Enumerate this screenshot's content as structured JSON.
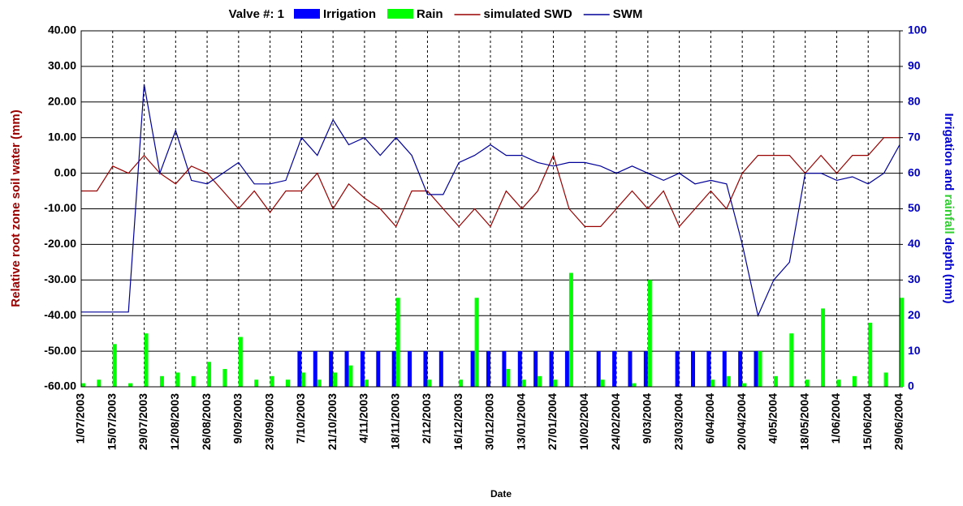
{
  "chart_data": {
    "type": "bar-line",
    "title": "Valve #: 1",
    "xlabel": "Date",
    "ylabel": "Relative root zone soil water  (mm)",
    "y2label": [
      "Irrigation and ",
      "rainfall",
      " depth (mm)"
    ],
    "y2label_colors": [
      "#0000cc",
      "#33cc33",
      "#0000cc"
    ],
    "ylabel_color": "#990000",
    "x": [
      "1/07/2003",
      "8/07/2003",
      "15/07/2003",
      "22/07/2003",
      "29/07/2003",
      "5/08/2003",
      "12/08/2003",
      "19/08/2003",
      "26/08/2003",
      "2/09/2003",
      "9/09/2003",
      "16/09/2003",
      "23/09/2003",
      "30/09/2003",
      "7/10/2003",
      "14/10/2003",
      "21/10/2003",
      "28/10/2003",
      "4/11/2003",
      "11/11/2003",
      "18/11/2003",
      "25/11/2003",
      "2/12/2003",
      "9/12/2003",
      "16/12/2003",
      "23/12/2003",
      "30/12/2003",
      "6/01/2004",
      "13/01/2004",
      "20/01/2004",
      "27/01/2004",
      "3/02/2004",
      "10/02/2004",
      "17/02/2004",
      "24/02/2004",
      "2/03/2004",
      "9/03/2004",
      "16/03/2004",
      "23/03/2004",
      "30/03/2004",
      "6/04/2004",
      "13/04/2004",
      "20/04/2004",
      "27/04/2004",
      "4/05/2004",
      "11/05/2004",
      "18/05/2004",
      "25/05/2004",
      "1/06/2004",
      "8/06/2004",
      "15/06/2004",
      "22/06/2004",
      "29/06/2004"
    ],
    "xlim": [
      "1/07/2003",
      "29/06/2004"
    ],
    "xticks": [
      "1/07/2003",
      "15/07/2003",
      "29/07/2003",
      "12/08/2003",
      "26/08/2003",
      "9/09/2003",
      "23/09/2003",
      "7/10/2003",
      "21/10/2003",
      "4/11/2003",
      "18/11/2003",
      "2/12/2003",
      "16/12/2003",
      "30/12/2003",
      "13/01/2004",
      "27/01/2004",
      "10/02/2004",
      "24/02/2004",
      "9/03/2004",
      "23/03/2004",
      "6/04/2004",
      "20/04/2004",
      "4/05/2004",
      "18/05/2004",
      "1/06/2004",
      "15/06/2004",
      "29/06/2004"
    ],
    "ylim": [
      -60,
      40
    ],
    "yticks": [
      {
        "value": -60,
        "label": "-60.00"
      },
      {
        "value": -50,
        "label": "-50.00"
      },
      {
        "value": -40,
        "label": "-40.00"
      },
      {
        "value": -30,
        "label": "-30.00"
      },
      {
        "value": -20,
        "label": "-20.00"
      },
      {
        "value": -10,
        "label": "-10.00"
      },
      {
        "value": 0,
        "label": "0.00"
      },
      {
        "value": 10,
        "label": "10.00"
      },
      {
        "value": 20,
        "label": "20.00"
      },
      {
        "value": 30,
        "label": "30.00"
      },
      {
        "value": 40,
        "label": "40.00"
      }
    ],
    "y2lim": [
      0,
      100
    ],
    "y2ticks": [
      0,
      10,
      20,
      30,
      40,
      50,
      60,
      70,
      80,
      90,
      100
    ],
    "grid": true,
    "series": [
      {
        "name": "Irrigation",
        "kind": "bar",
        "axis": "y2",
        "color": "#0000ff",
        "values": [
          0,
          0,
          0,
          0,
          0,
          0,
          0,
          0,
          0,
          0,
          0,
          0,
          0,
          0,
          10,
          10,
          10,
          10,
          10,
          10,
          10,
          10,
          10,
          10,
          0,
          10,
          10,
          10,
          10,
          10,
          10,
          10,
          0,
          10,
          10,
          10,
          10,
          0,
          10,
          10,
          10,
          10,
          10,
          10,
          0,
          0,
          0,
          0,
          0,
          0,
          0,
          0,
          0
        ]
      },
      {
        "name": "Rain",
        "kind": "bar",
        "axis": "y2",
        "color": "#00ff00",
        "values": [
          1,
          2,
          12,
          1,
          15,
          3,
          4,
          3,
          7,
          5,
          14,
          2,
          3,
          2,
          4,
          2,
          4,
          6,
          2,
          0,
          25,
          0,
          2,
          0,
          2,
          25,
          0,
          5,
          2,
          3,
          2,
          32,
          0,
          2,
          0,
          1,
          30,
          0,
          0,
          0,
          2,
          3,
          1,
          10,
          3,
          15,
          2,
          22,
          2,
          3,
          18,
          4,
          25
        ]
      },
      {
        "name": "simulated SWD",
        "kind": "line",
        "color": "#990000",
        "values": [
          -5,
          -5,
          2,
          0,
          5,
          0,
          -3,
          2,
          0,
          -5,
          -10,
          -5,
          -11,
          -5,
          -5,
          0,
          -10,
          -3,
          -7,
          -10,
          -15,
          -5,
          -5,
          -10,
          -15,
          -10,
          -15,
          -5,
          -10,
          -5,
          5,
          -10,
          -15,
          -15,
          -10,
          -5,
          -10,
          -5,
          -15,
          -10,
          -5,
          -10,
          0,
          5,
          5,
          5,
          0,
          5,
          0,
          5,
          5,
          10,
          10
        ]
      },
      {
        "name": "SWM",
        "kind": "line",
        "color": "#000099",
        "values": [
          -39,
          -39,
          -39,
          -39,
          25,
          0,
          12,
          -2,
          -3,
          0,
          3,
          -3,
          -3,
          -2,
          10,
          5,
          15,
          8,
          10,
          5,
          10,
          5,
          -6,
          -6,
          3,
          5,
          8,
          5,
          5,
          3,
          2,
          3,
          3,
          2,
          0,
          2,
          0,
          -2,
          0,
          -3,
          -2,
          -3,
          -20,
          -40,
          -30,
          -25,
          0,
          0,
          -2,
          -1,
          -3,
          0,
          8
        ]
      }
    ]
  }
}
